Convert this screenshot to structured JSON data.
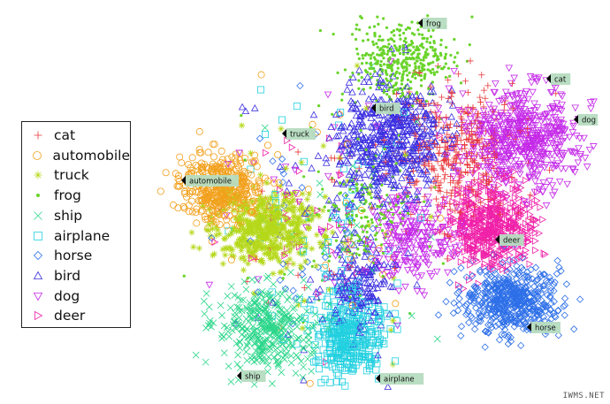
{
  "chart_data": {
    "type": "scatter",
    "title": "",
    "xlabel": "",
    "ylabel": "",
    "grid": false,
    "legend_position": "left",
    "series": [
      {
        "name": "cat",
        "marker": "plus",
        "color": "#e8383b"
      },
      {
        "name": "automobile",
        "marker": "circle",
        "color": "#f2a01c"
      },
      {
        "name": "truck",
        "marker": "star",
        "color": "#b5d81a"
      },
      {
        "name": "frog",
        "marker": "dot",
        "color": "#6ad42a"
      },
      {
        "name": "ship",
        "marker": "cross",
        "color": "#2bd68a"
      },
      {
        "name": "airplane",
        "marker": "square",
        "color": "#22d0e0"
      },
      {
        "name": "horse",
        "marker": "diamond",
        "color": "#2d6fe8"
      },
      {
        "name": "bird",
        "marker": "triangle-up",
        "color": "#3a2ee0"
      },
      {
        "name": "dog",
        "marker": "triangle-down",
        "color": "#c428e8"
      },
      {
        "name": "deer",
        "marker": "triangle-right",
        "color": "#f020a8"
      }
    ],
    "cluster_labels": [
      {
        "text": "frog"
      },
      {
        "text": "cat"
      },
      {
        "text": "bird"
      },
      {
        "text": "dog"
      },
      {
        "text": "truck"
      },
      {
        "text": "automobile"
      },
      {
        "text": "deer"
      },
      {
        "text": "horse"
      },
      {
        "text": "ship"
      },
      {
        "text": "airplane"
      }
    ]
  },
  "watermark": "IWMS.NET"
}
